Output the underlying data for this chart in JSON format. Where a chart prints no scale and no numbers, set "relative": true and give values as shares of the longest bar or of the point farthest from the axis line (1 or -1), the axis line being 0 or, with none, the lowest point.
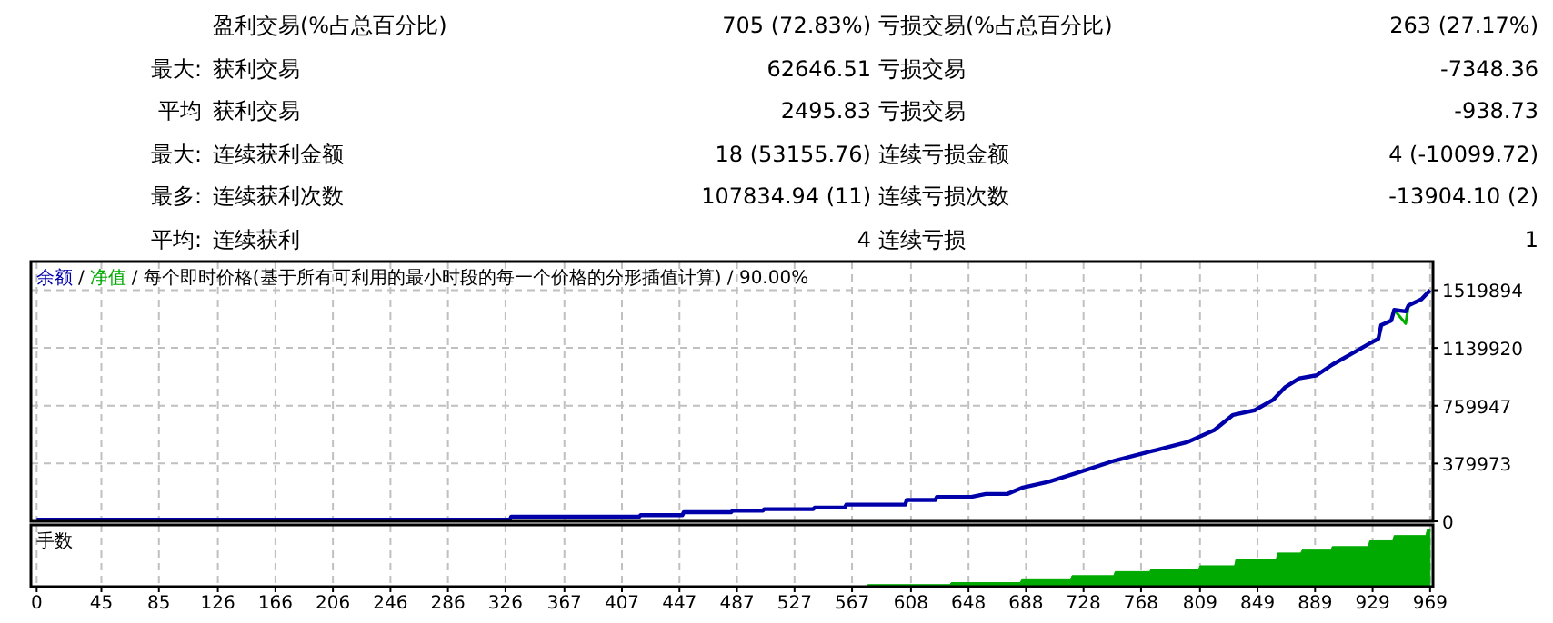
{
  "chart_data": [
    {
      "type": "other",
      "annotations": [
        "盈利交易(%占总百分比)",
        "705 (72.83%)",
        "亏损交易(%占总百分比)",
        "263 (27.17%)",
        "最大:",
        "获利交易",
        "62646.51",
        "亏损交易",
        "-7348.36",
        "平均",
        "获利交易",
        "2495.83",
        "亏损交易",
        "-938.73",
        "最大:",
        "连续获利金额",
        "18 (53155.76)",
        "连续亏损金额",
        "4 (-10099.72)",
        "最多:",
        "连续获利次数",
        "107834.94 (11)",
        "连续亏损次数",
        "-13904.10 (2)",
        "平均:",
        "连续获利",
        "4",
        "连续亏损",
        "1"
      ]
    },
    {
      "type": "line",
      "title": "/ 每个即时价格(基于所有可利用的最小时段的每一个价格的分形插值计算) / 90.00%",
      "annotations": [
        "/"
      ],
      "legend": "top left",
      "grid": true,
      "tick_labels": "y",
      "xlim": [
        -4,
        971
      ],
      "ylim": [
        0,
        1708000
      ],
      "yticks": [
        0,
        379973,
        759947,
        1139920,
        1519894
      ],
      "xticks": [
        0,
        45,
        85,
        126,
        166,
        206,
        246,
        286,
        326,
        367,
        407,
        447,
        487,
        527,
        567,
        608,
        648,
        688,
        728,
        768,
        809,
        849,
        889,
        929,
        969
      ],
      "series": [
        {
          "name": "净值",
          "color": "#00aa00",
          "x": [
            944,
            952,
            954
          ],
          "values": [
            1390000,
            1300000,
            1420000
          ]
        },
        {
          "name": "余额",
          "color": "#0000aa",
          "x": [
            0,
            329,
            330,
            419,
            420,
            449,
            450,
            483,
            484,
            505,
            506,
            540,
            541,
            562,
            563,
            604,
            605,
            625,
            626,
            650,
            660,
            675,
            685,
            704,
            724,
            750,
            775,
            800,
            819,
            832,
            847,
            860,
            868,
            878,
            890,
            901,
            914,
            927,
            933,
            935,
            942,
            944,
            952,
            954,
            963,
            969
          ],
          "values": [
            10000,
            10000,
            30000,
            30000,
            40000,
            40000,
            60000,
            60000,
            70000,
            70000,
            80000,
            80000,
            90000,
            90000,
            110000,
            110000,
            140000,
            140000,
            160000,
            160000,
            180000,
            180000,
            220000,
            260000,
            320000,
            400000,
            460000,
            520000,
            600000,
            700000,
            730000,
            800000,
            880000,
            940000,
            960000,
            1030000,
            1100000,
            1170000,
            1200000,
            1290000,
            1320000,
            1390000,
            1380000,
            1420000,
            1460000,
            1520000
          ]
        }
      ]
    },
    {
      "type": "area",
      "title": "手数",
      "relative": true,
      "grid": "x",
      "tick_labels": "x",
      "color": "#00aa00",
      "xlim": [
        -4,
        971
      ],
      "xticks": [
        0,
        45,
        85,
        126,
        166,
        206,
        246,
        286,
        326,
        367,
        407,
        447,
        487,
        527,
        567,
        608,
        648,
        688,
        728,
        768,
        809,
        849,
        889,
        929,
        969
      ],
      "x": [
        0,
        577,
        578,
        635,
        636,
        684,
        685,
        719,
        720,
        749,
        750,
        774,
        775,
        808,
        809,
        833,
        834,
        862,
        863,
        879,
        880,
        900,
        901,
        926,
        927,
        943,
        944,
        966,
        967,
        968,
        969
      ],
      "values": [
        0,
        0,
        0.035,
        0.035,
        0.07,
        0.07,
        0.12,
        0.12,
        0.19,
        0.19,
        0.26,
        0.26,
        0.3,
        0.3,
        0.36,
        0.36,
        0.47,
        0.47,
        0.58,
        0.58,
        0.63,
        0.63,
        0.69,
        0.69,
        0.79,
        0.79,
        0.88,
        0.88,
        0.98,
        0.98,
        1
      ]
    }
  ]
}
